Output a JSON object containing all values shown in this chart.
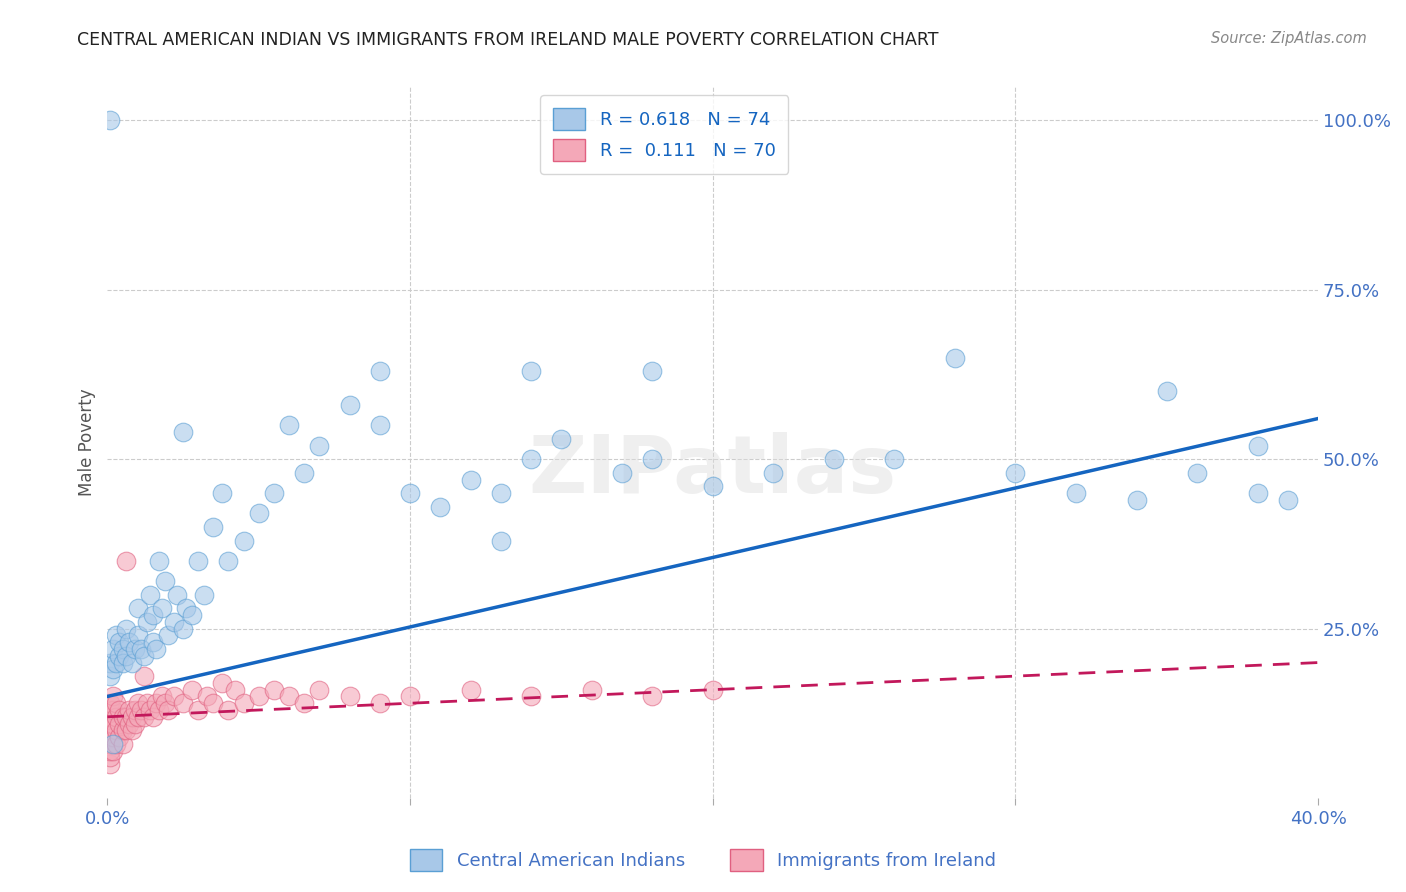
{
  "title": "CENTRAL AMERICAN INDIAN VS IMMIGRANTS FROM IRELAND MALE POVERTY CORRELATION CHART",
  "source": "Source: ZipAtlas.com",
  "ylabel": "Male Poverty",
  "legend_label1": "Central American Indians",
  "legend_label2": "Immigrants from Ireland",
  "R1": 0.618,
  "N1": 74,
  "R2": 0.111,
  "N2": 70,
  "blue_color": "#a8c8e8",
  "blue_edge_color": "#5a9fd4",
  "pink_color": "#f4a8b8",
  "pink_edge_color": "#e06080",
  "trend_blue": "#1565c0",
  "trend_pink": "#c2185b",
  "background_color": "#ffffff",
  "grid_color": "#cccccc",
  "title_color": "#222222",
  "axis_tick_color": "#4472c4",
  "legend_text_color": "#1565c0",
  "watermark": "ZIPatlas",
  "blue_x": [
    0.001,
    0.001,
    0.002,
    0.002,
    0.003,
    0.003,
    0.004,
    0.004,
    0.005,
    0.005,
    0.006,
    0.006,
    0.007,
    0.008,
    0.009,
    0.01,
    0.01,
    0.011,
    0.012,
    0.013,
    0.014,
    0.015,
    0.015,
    0.016,
    0.017,
    0.018,
    0.019,
    0.02,
    0.022,
    0.023,
    0.025,
    0.026,
    0.028,
    0.03,
    0.032,
    0.035,
    0.038,
    0.04,
    0.045,
    0.05,
    0.055,
    0.06,
    0.065,
    0.07,
    0.08,
    0.09,
    0.1,
    0.11,
    0.12,
    0.13,
    0.14,
    0.15,
    0.17,
    0.18,
    0.2,
    0.22,
    0.24,
    0.26,
    0.28,
    0.3,
    0.32,
    0.34,
    0.35,
    0.36,
    0.38,
    0.38,
    0.39,
    0.001,
    0.14,
    0.18,
    0.09,
    0.002,
    0.025,
    0.13
  ],
  "blue_y": [
    0.18,
    0.2,
    0.19,
    0.22,
    0.2,
    0.24,
    0.21,
    0.23,
    0.22,
    0.2,
    0.21,
    0.25,
    0.23,
    0.2,
    0.22,
    0.24,
    0.28,
    0.22,
    0.21,
    0.26,
    0.3,
    0.23,
    0.27,
    0.22,
    0.35,
    0.28,
    0.32,
    0.24,
    0.26,
    0.3,
    0.25,
    0.28,
    0.27,
    0.35,
    0.3,
    0.4,
    0.45,
    0.35,
    0.38,
    0.42,
    0.45,
    0.55,
    0.48,
    0.52,
    0.58,
    0.55,
    0.45,
    0.43,
    0.47,
    0.45,
    0.5,
    0.53,
    0.48,
    0.5,
    0.46,
    0.48,
    0.5,
    0.5,
    0.65,
    0.48,
    0.45,
    0.44,
    0.6,
    0.48,
    0.45,
    0.52,
    0.44,
    1.0,
    0.63,
    0.63,
    0.63,
    0.08,
    0.54,
    0.38
  ],
  "pink_x": [
    0.001,
    0.001,
    0.001,
    0.001,
    0.001,
    0.001,
    0.001,
    0.001,
    0.001,
    0.001,
    0.002,
    0.002,
    0.002,
    0.002,
    0.002,
    0.003,
    0.003,
    0.003,
    0.003,
    0.004,
    0.004,
    0.004,
    0.005,
    0.005,
    0.005,
    0.006,
    0.006,
    0.007,
    0.007,
    0.008,
    0.008,
    0.009,
    0.009,
    0.01,
    0.01,
    0.011,
    0.012,
    0.013,
    0.014,
    0.015,
    0.016,
    0.017,
    0.018,
    0.019,
    0.02,
    0.022,
    0.025,
    0.028,
    0.03,
    0.033,
    0.035,
    0.038,
    0.04,
    0.042,
    0.045,
    0.05,
    0.055,
    0.06,
    0.065,
    0.07,
    0.08,
    0.09,
    0.1,
    0.12,
    0.14,
    0.16,
    0.18,
    0.2,
    0.006,
    0.012
  ],
  "pink_y": [
    0.05,
    0.06,
    0.07,
    0.08,
    0.09,
    0.1,
    0.11,
    0.12,
    0.13,
    0.14,
    0.07,
    0.09,
    0.11,
    0.13,
    0.15,
    0.08,
    0.1,
    0.12,
    0.14,
    0.09,
    0.11,
    0.13,
    0.08,
    0.1,
    0.12,
    0.1,
    0.12,
    0.11,
    0.13,
    0.1,
    0.12,
    0.11,
    0.13,
    0.12,
    0.14,
    0.13,
    0.12,
    0.14,
    0.13,
    0.12,
    0.14,
    0.13,
    0.15,
    0.14,
    0.13,
    0.15,
    0.14,
    0.16,
    0.13,
    0.15,
    0.14,
    0.17,
    0.13,
    0.16,
    0.14,
    0.15,
    0.16,
    0.15,
    0.14,
    0.16,
    0.15,
    0.14,
    0.15,
    0.16,
    0.15,
    0.16,
    0.15,
    0.16,
    0.35,
    0.18
  ],
  "blue_trendline": [
    0.15,
    0.56
  ],
  "pink_trendline": [
    0.12,
    0.2
  ],
  "xlim": [
    0.0,
    0.4
  ],
  "ylim": [
    0.0,
    1.05
  ],
  "x_ticks": [
    0.0,
    0.1,
    0.2,
    0.3,
    0.4
  ],
  "x_tick_labels": [
    "0.0%",
    "",
    "",
    "",
    "40.0%"
  ],
  "y_ticks_right": [
    0.25,
    0.5,
    0.75,
    1.0
  ],
  "y_tick_labels_right": [
    "25.0%",
    "50.0%",
    "75.0%",
    "100.0%"
  ]
}
